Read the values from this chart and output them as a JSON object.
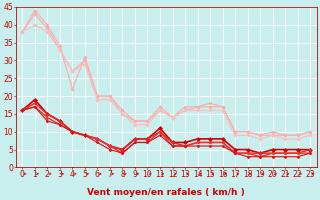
{
  "xlabel": "Vent moyen/en rafales ( km/h )",
  "bg_color": "#c8eeee",
  "grid_color": "#aadddd",
  "xlim": [
    -0.5,
    23.5
  ],
  "ylim": [
    0,
    45
  ],
  "yticks": [
    0,
    5,
    10,
    15,
    20,
    25,
    30,
    35,
    40,
    45
  ],
  "xticks": [
    0,
    1,
    2,
    3,
    4,
    5,
    6,
    7,
    8,
    9,
    10,
    11,
    12,
    13,
    14,
    15,
    16,
    17,
    18,
    19,
    20,
    21,
    22,
    23
  ],
  "series": [
    {
      "x": [
        0,
        1,
        2,
        3,
        4,
        5,
        6,
        7,
        8,
        9,
        10,
        11,
        12,
        13,
        14,
        15,
        16,
        17,
        18,
        19,
        20,
        21,
        22,
        23
      ],
      "y": [
        38,
        44,
        40,
        34,
        22,
        31,
        20,
        20,
        16,
        13,
        13,
        17,
        14,
        17,
        17,
        18,
        17,
        10,
        10,
        9,
        10,
        9,
        9,
        10
      ],
      "color": "#ffaaaa",
      "lw": 0.8,
      "marker": "D",
      "ms": 2.0
    },
    {
      "x": [
        0,
        1,
        2,
        3,
        4,
        5,
        6,
        7,
        8,
        9,
        10,
        11,
        12,
        13,
        14,
        15,
        16,
        17,
        18,
        19,
        20,
        21,
        22,
        23
      ],
      "y": [
        38,
        43,
        39,
        33,
        27,
        30,
        20,
        20,
        15,
        13,
        13,
        16,
        14,
        16,
        17,
        17,
        17,
        10,
        10,
        9,
        9,
        9,
        9,
        10
      ],
      "color": "#ffaaaa",
      "lw": 0.8,
      "marker": "D",
      "ms": 2.0
    },
    {
      "x": [
        0,
        1,
        2,
        3,
        4,
        5,
        6,
        7,
        8,
        9,
        10,
        11,
        12,
        13,
        14,
        15,
        16,
        17,
        18,
        19,
        20,
        21,
        22,
        23
      ],
      "y": [
        38,
        40,
        38,
        33,
        27,
        29,
        19,
        19,
        15,
        12,
        12,
        16,
        14,
        16,
        16,
        16,
        16,
        9,
        9,
        8,
        9,
        8,
        8,
        9
      ],
      "color": "#ffbbbb",
      "lw": 0.8,
      "marker": "D",
      "ms": 2.0
    },
    {
      "x": [
        0,
        1,
        2,
        3,
        4,
        5,
        6,
        7,
        8,
        9,
        10,
        11,
        12,
        13,
        14,
        15,
        16,
        17,
        18,
        19,
        20,
        21,
        22,
        23
      ],
      "y": [
        16,
        19,
        15,
        13,
        10,
        9,
        8,
        6,
        5,
        8,
        8,
        11,
        7,
        7,
        8,
        8,
        8,
        5,
        5,
        4,
        5,
        5,
        5,
        5
      ],
      "color": "#cc0000",
      "lw": 1.2,
      "marker": "D",
      "ms": 2.5
    },
    {
      "x": [
        0,
        1,
        2,
        3,
        4,
        5,
        6,
        7,
        8,
        9,
        10,
        11,
        12,
        13,
        14,
        15,
        16,
        17,
        18,
        19,
        20,
        21,
        22,
        23
      ],
      "y": [
        16,
        18,
        15,
        13,
        10,
        9,
        8,
        6,
        5,
        8,
        8,
        10,
        7,
        6,
        7,
        7,
        7,
        4,
        4,
        4,
        4,
        4,
        4,
        5
      ],
      "color": "#ee2222",
      "lw": 1.0,
      "marker": "D",
      "ms": 2.0
    },
    {
      "x": [
        0,
        1,
        2,
        3,
        4,
        5,
        6,
        7,
        8,
        9,
        10,
        11,
        12,
        13,
        14,
        15,
        16,
        17,
        18,
        19,
        20,
        21,
        22,
        23
      ],
      "y": [
        16,
        17,
        14,
        12,
        10,
        9,
        8,
        6,
        4,
        7,
        7,
        10,
        6,
        6,
        7,
        7,
        7,
        4,
        4,
        3,
        4,
        4,
        4,
        4
      ],
      "color": "#ee3333",
      "lw": 1.0,
      "marker": "D",
      "ms": 1.8
    },
    {
      "x": [
        0,
        1,
        2,
        3,
        4,
        5,
        6,
        7,
        8,
        9,
        10,
        11,
        12,
        13,
        14,
        15,
        16,
        17,
        18,
        19,
        20,
        21,
        22,
        23
      ],
      "y": [
        16,
        17,
        13,
        12,
        10,
        9,
        7,
        5,
        4,
        7,
        7,
        9,
        6,
        6,
        6,
        6,
        6,
        4,
        3,
        3,
        3,
        3,
        3,
        4
      ],
      "color": "#dd1111",
      "lw": 0.8,
      "marker": "D",
      "ms": 1.8
    }
  ],
  "arrow_color": "#cc0000",
  "xlabel_color": "#cc0000",
  "xlabel_fontsize": 6.5,
  "tick_fontsize": 5.5,
  "tick_color": "#cc0000",
  "spine_color": "#cc0000"
}
